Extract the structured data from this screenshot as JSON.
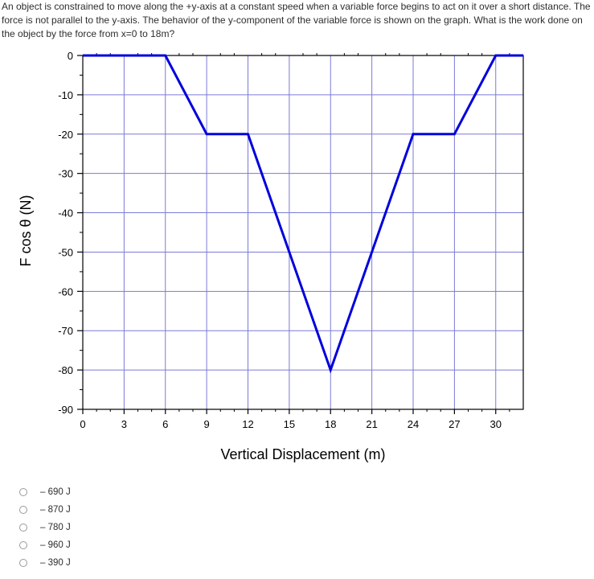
{
  "question": {
    "text": "An object is constrained to move along the +y-axis at a constant speed when a variable force begins to act on it over a short distance. The force is not parallel to the y-axis. The behavior of the y-component of the variable force is shown on the graph. What is the work done on the object by the force from x=0 to 18m?"
  },
  "chart_data": {
    "type": "line",
    "xlabel": "Vertical Displacement (m)",
    "ylabel": "F cos θ (N)",
    "xlim": [
      0,
      32
    ],
    "ylim": [
      -90,
      0
    ],
    "xticks": [
      0,
      3,
      6,
      9,
      12,
      15,
      18,
      21,
      24,
      27,
      30
    ],
    "yticks": [
      0,
      -10,
      -20,
      -30,
      -40,
      -50,
      -60,
      -70,
      -80,
      -90
    ],
    "grid": true,
    "series": [
      {
        "x": [
          0,
          6,
          9,
          12,
          18,
          24,
          27,
          30,
          32
        ],
        "y": [
          0,
          0,
          -20,
          -20,
          -80,
          -20,
          -20,
          0,
          0
        ],
        "color": "#0000dd"
      }
    ]
  },
  "options": [
    {
      "label": "– 690 J"
    },
    {
      "label": "– 870 J"
    },
    {
      "label": "– 780 J"
    },
    {
      "label": "– 960 J"
    },
    {
      "label": "– 390 J"
    }
  ]
}
